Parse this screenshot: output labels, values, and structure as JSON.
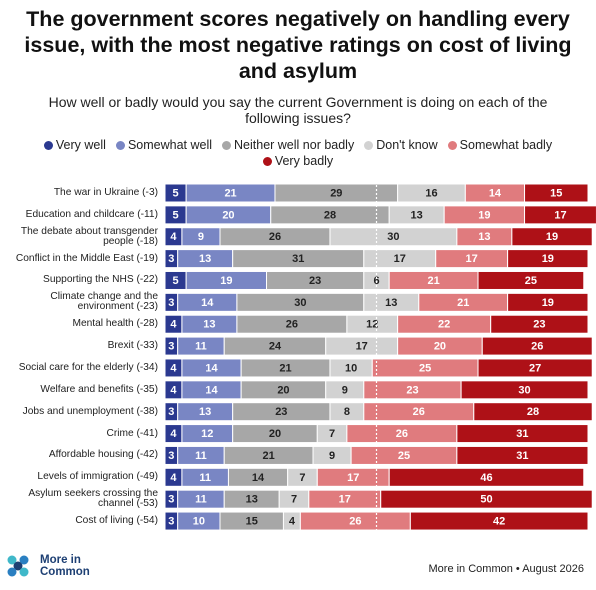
{
  "chart_data": {
    "type": "stacked-bar",
    "title": "The government scores negatively on handling every issue, with the most negative ratings on cost of living and asylum",
    "subtitle": "How well or badly would you say the current Government is doing on each of the following issues?",
    "categories": [
      "The war in Ukraine (-3)",
      "Education and childcare (-11)",
      "The debate about transgender people (-18)",
      "Conflict in the Middle East (-19)",
      "Supporting the NHS (-22)",
      "Climate change and the environment (-23)",
      "Mental health (-28)",
      "Brexit (-33)",
      "Social care for the elderly (-34)",
      "Welfare and benefits (-35)",
      "Jobs and unemployment (-38)",
      "Crime (-41)",
      "Affordable housing (-42)",
      "Levels of immigration (-49)",
      "Asylum seekers crossing the channel (-53)",
      "Cost of living (-54)"
    ],
    "series": [
      {
        "name": "Very well",
        "color": "#2b3990",
        "values": [
          5,
          5,
          4,
          3,
          5,
          3,
          4,
          3,
          4,
          4,
          3,
          4,
          3,
          4,
          3,
          3
        ]
      },
      {
        "name": "Somewhat well",
        "color": "#7986c4",
        "values": [
          21,
          20,
          9,
          13,
          19,
          14,
          13,
          11,
          14,
          14,
          13,
          12,
          11,
          11,
          11,
          10
        ]
      },
      {
        "name": "Neither well nor badly",
        "color": "#a7a7a7",
        "values": [
          29,
          28,
          26,
          31,
          23,
          30,
          26,
          24,
          21,
          20,
          23,
          20,
          21,
          14,
          13,
          15
        ]
      },
      {
        "name": "Don't know",
        "color": "#d2d2d2",
        "values": [
          16,
          13,
          30,
          17,
          6,
          13,
          12,
          17,
          10,
          9,
          8,
          7,
          9,
          7,
          7,
          4
        ]
      },
      {
        "name": "Somewhat badly",
        "color": "#e07b7e",
        "values": [
          14,
          19,
          13,
          17,
          21,
          21,
          22,
          20,
          25,
          23,
          26,
          26,
          25,
          17,
          17,
          26
        ]
      },
      {
        "name": "Very badly",
        "color": "#ae1117",
        "values": [
          15,
          17,
          19,
          19,
          25,
          19,
          23,
          26,
          27,
          30,
          28,
          31,
          31,
          46,
          50,
          42
        ]
      }
    ],
    "xlim": [
      0,
      100
    ],
    "logo_text": "More in Common",
    "source": "More in Common • August 2026"
  }
}
